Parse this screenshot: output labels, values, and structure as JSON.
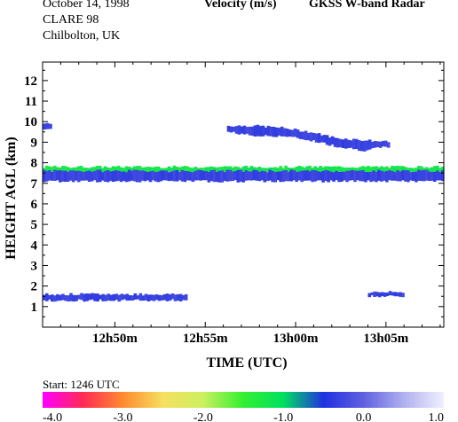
{
  "header": {
    "date": "October  14, 1998",
    "campaign": "CLARE 98",
    "location": "Chilbolton, UK",
    "quantity": "Velocity (m/s)",
    "instrument": "GKSS  W-band Radar"
  },
  "footer": {
    "start": "Start:  1246 UTC"
  },
  "chart_data": {
    "type": "heatmap",
    "title": "Velocity (m/s)",
    "xlabel": "TIME (UTC)",
    "ylabel": "HEIGHT AGL (km)",
    "xlim_minutes_utc": [
      766,
      788.2
    ],
    "ylim": [
      0,
      12.9
    ],
    "x_ticks": [
      {
        "minute": 770,
        "label": "12h50m"
      },
      {
        "minute": 775,
        "label": "12h55m"
      },
      {
        "minute": 780,
        "label": "13h00m"
      },
      {
        "minute": 785,
        "label": "13h05m"
      }
    ],
    "y_ticks": [
      1,
      2,
      3,
      4,
      5,
      6,
      7,
      8,
      9,
      10,
      11,
      12
    ],
    "colorbar": {
      "min": -4.0,
      "max": 1.0,
      "ticks": [
        "-4.0",
        "-3.0",
        "-2.0",
        "-1.0",
        "0.0",
        "1.0"
      ],
      "stops": [
        "#ff00ff",
        "#ff2a55",
        "#ff8a30",
        "#f5e060",
        "#ccf060",
        "#33f030",
        "#00e060",
        "#2030e0",
        "#6060e0",
        "#b0b0f0",
        "#f0f0ff"
      ]
    },
    "features": [
      {
        "name": "cirrus layer",
        "t": [
          776.2,
          785.2
        ],
        "top_km": [
          9.8,
          9.8,
          9.7,
          9.5,
          9.2,
          9.1,
          9.0
        ],
        "bottom_km": [
          9.5,
          9.3,
          9.3,
          9.1,
          8.8,
          8.6,
          8.8
        ],
        "velocity": -0.3
      },
      {
        "name": "upper cloud fragment",
        "t": [
          766,
          766.5
        ],
        "top_km": [
          9.9
        ],
        "bottom_km": [
          9.6
        ],
        "velocity": -0.3
      },
      {
        "name": "mid-level layer upper part",
        "t": [
          766,
          788.2
        ],
        "top_km": [
          7.8
        ],
        "bottom_km": [
          7.5
        ],
        "velocity": -1.2
      },
      {
        "name": "mid-level layer lower part",
        "t": [
          766,
          788.2
        ],
        "top_km": [
          7.6
        ],
        "bottom_km": [
          7.1
        ],
        "velocity": -0.3
      },
      {
        "name": "low cloud early",
        "t": [
          766,
          774.0
        ],
        "top_km": [
          1.6
        ],
        "bottom_km": [
          1.3
        ],
        "velocity": -0.3
      },
      {
        "name": "low cloud late",
        "t": [
          784.0,
          786.0
        ],
        "top_km": [
          1.7
        ],
        "bottom_km": [
          1.5
        ],
        "velocity": -0.3
      }
    ]
  }
}
